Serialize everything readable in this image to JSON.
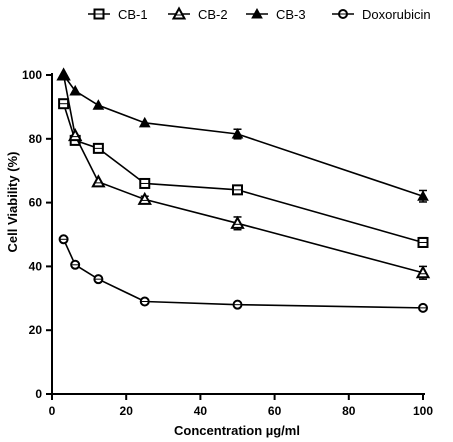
{
  "chart_data": {
    "type": "line",
    "xlabel": "Concentration µg/ml",
    "ylabel": "Cell  Viability (%)",
    "xlim": [
      0,
      100
    ],
    "ylim": [
      0,
      100
    ],
    "xticks": [
      0,
      20,
      40,
      60,
      80,
      100
    ],
    "yticks": [
      0,
      20,
      40,
      60,
      80,
      100
    ],
    "legend_position": "top",
    "grid": false,
    "series": [
      {
        "name": "CB-1",
        "marker": "square-open",
        "color": "#000000",
        "x": [
          3.125,
          6.25,
          12.5,
          25,
          50,
          100
        ],
        "y": [
          91,
          79.5,
          77,
          66,
          64,
          47.5
        ],
        "error": [
          0,
          1.2,
          0,
          0,
          1.0,
          1.5
        ]
      },
      {
        "name": "CB-2",
        "marker": "triangle-open",
        "color": "#000000",
        "x": [
          3.125,
          6.25,
          12.5,
          25,
          50,
          100
        ],
        "y": [
          100,
          81,
          66.5,
          61,
          53.5,
          38
        ],
        "error": [
          0,
          0,
          0,
          1.0,
          2.0,
          2.0
        ]
      },
      {
        "name": "CB-3",
        "marker": "triangle-filled",
        "color": "#000000",
        "x": [
          3.125,
          6.25,
          12.5,
          25,
          50,
          100
        ],
        "y": [
          100,
          95,
          90.5,
          85,
          81.5,
          62
        ],
        "error": [
          0,
          0,
          0,
          0,
          1.5,
          1.8
        ]
      },
      {
        "name": "Doxorubicin",
        "marker": "circle-open-hatched",
        "color": "#000000",
        "x": [
          3.125,
          6.25,
          12.5,
          25,
          50,
          100
        ],
        "y": [
          48.5,
          40.5,
          36,
          29,
          28,
          27
        ],
        "error": [
          0,
          0,
          0,
          0,
          0,
          0
        ]
      }
    ]
  }
}
